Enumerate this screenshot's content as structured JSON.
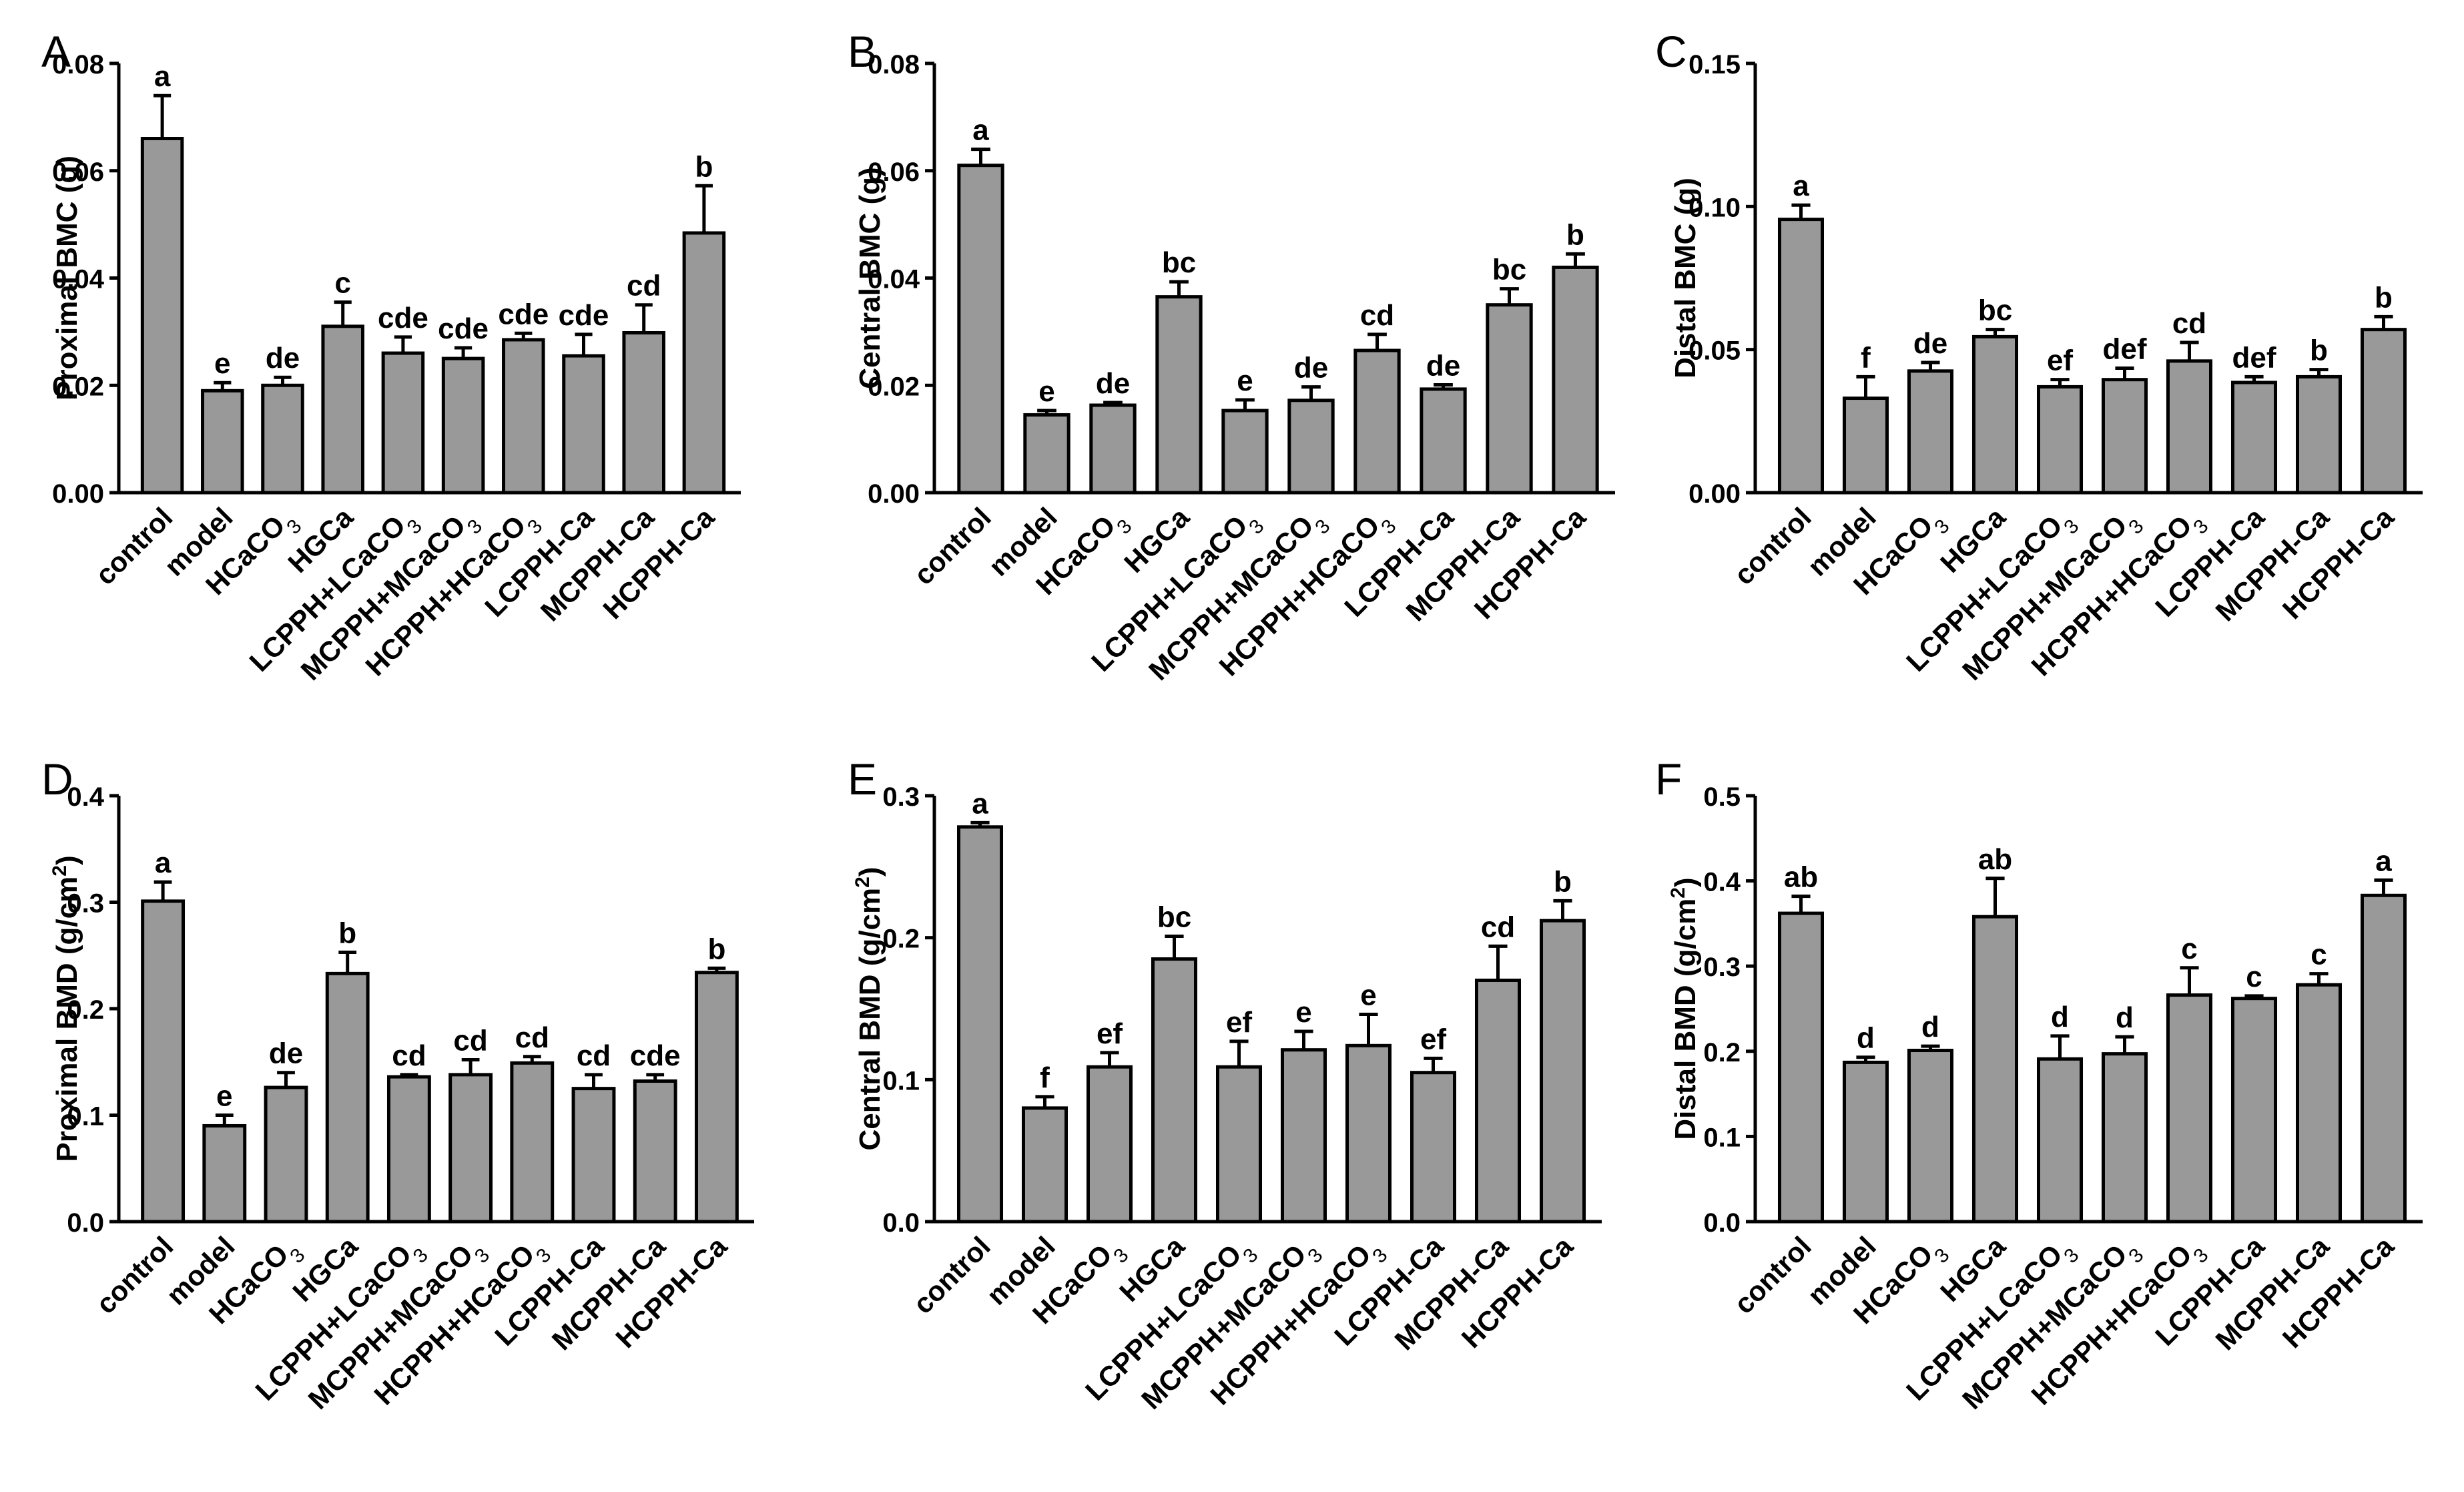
{
  "figure": {
    "categories": [
      "control",
      "model",
      "HCaCO3",
      "HGCa",
      "LCPPH+LCaCO3",
      "MCPPH+MCaCO3",
      "HCPPH+HCaCO3",
      "LCPPH-Ca",
      "MCPPH-Ca",
      "HCPPH-Ca"
    ],
    "bar_color": "#999999",
    "stroke_color": "#000000"
  },
  "chart_data": [
    {
      "panel": "A",
      "type": "bar",
      "title": "",
      "xlabel": "",
      "ylabel": "Proximal  BMC (g)",
      "ylim": [
        0,
        0.08
      ],
      "yticks": [
        "0.00",
        "0.02",
        "0.04",
        "0.06",
        "0.08"
      ],
      "values": [
        0.066,
        0.019,
        0.02,
        0.031,
        0.026,
        0.025,
        0.0285,
        0.0255,
        0.0298,
        0.0484
      ],
      "errors": [
        0.008,
        0.0015,
        0.0015,
        0.0045,
        0.003,
        0.002,
        0.0012,
        0.004,
        0.0052,
        0.0088
      ],
      "labels": [
        "a",
        "e",
        "de",
        "c",
        "cde",
        "cde",
        "cde",
        "cde",
        "cd",
        "b"
      ]
    },
    {
      "panel": "B",
      "type": "bar",
      "title": "",
      "xlabel": "",
      "ylabel": "Central BMC (g)",
      "ylim": [
        0,
        0.08
      ],
      "yticks": [
        "0.00",
        "0.02",
        "0.04",
        "0.06",
        "0.08"
      ],
      "values": [
        0.061,
        0.0145,
        0.0163,
        0.0365,
        0.0153,
        0.0172,
        0.0265,
        0.0193,
        0.035,
        0.042
      ],
      "errors": [
        0.003,
        0.0008,
        0.0005,
        0.0028,
        0.002,
        0.0025,
        0.003,
        0.0008,
        0.003,
        0.0025
      ],
      "labels": [
        "a",
        "e",
        "de",
        "bc",
        "e",
        "de",
        "cd",
        "de",
        "bc",
        "b"
      ]
    },
    {
      "panel": "C",
      "type": "bar",
      "title": "",
      "xlabel": "",
      "ylabel": "Distal BMC (g)",
      "ylim": [
        0,
        0.15
      ],
      "yticks": [
        "0.00",
        "0.05",
        "0.10",
        "0.15"
      ],
      "values": [
        0.0955,
        0.033,
        0.0425,
        0.0545,
        0.037,
        0.0395,
        0.046,
        0.0385,
        0.0405,
        0.057
      ],
      "errors": [
        0.005,
        0.0075,
        0.003,
        0.0025,
        0.0025,
        0.004,
        0.0065,
        0.002,
        0.0025,
        0.0045
      ],
      "labels": [
        "a",
        "f",
        "de",
        "bc",
        "ef",
        "def",
        "cd",
        "def",
        "b",
        "b"
      ]
    },
    {
      "panel": "D",
      "type": "bar",
      "title": "",
      "xlabel": "",
      "ylabel": "Proximal BMD (g/cm2)",
      "ylim": [
        0,
        0.4
      ],
      "yticks": [
        "0.0",
        "0.1",
        "0.2",
        "0.3",
        "0.4"
      ],
      "values": [
        0.301,
        0.09,
        0.126,
        0.233,
        0.136,
        0.138,
        0.149,
        0.125,
        0.132,
        0.234
      ],
      "errors": [
        0.018,
        0.01,
        0.014,
        0.02,
        0.002,
        0.014,
        0.006,
        0.013,
        0.006,
        0.004
      ],
      "labels": [
        "a",
        "e",
        "de",
        "b",
        "cd",
        "cd",
        "cd",
        "cd",
        "cde",
        "b"
      ]
    },
    {
      "panel": "E",
      "type": "bar",
      "title": "",
      "xlabel": "",
      "ylabel": "Central BMD (g/cm2)",
      "ylim": [
        0,
        0.3
      ],
      "yticks": [
        "0.0",
        "0.1",
        "0.2",
        "0.3"
      ],
      "values": [
        0.278,
        0.08,
        0.109,
        0.185,
        0.109,
        0.121,
        0.124,
        0.105,
        0.17,
        0.212
      ],
      "errors": [
        0.003,
        0.008,
        0.01,
        0.016,
        0.018,
        0.013,
        0.022,
        0.01,
        0.024,
        0.014
      ],
      "labels": [
        "a",
        "f",
        "ef",
        "bc",
        "ef",
        "e",
        "e",
        "ef",
        "cd",
        "b"
      ]
    },
    {
      "panel": "F",
      "type": "bar",
      "title": "",
      "xlabel": "",
      "ylabel": "Distal BMD (g/cm2)",
      "ylim": [
        0,
        0.5
      ],
      "yticks": [
        "0.0",
        "0.1",
        "0.2",
        "0.3",
        "0.4",
        "0.5"
      ],
      "values": [
        0.362,
        0.187,
        0.201,
        0.358,
        0.191,
        0.197,
        0.266,
        0.262,
        0.278,
        0.383
      ],
      "errors": [
        0.02,
        0.006,
        0.005,
        0.045,
        0.027,
        0.02,
        0.032,
        0.003,
        0.013,
        0.018
      ],
      "labels": [
        "ab",
        "d",
        "d",
        "ab",
        "d",
        "d",
        "c",
        "c",
        "c",
        "a"
      ]
    }
  ]
}
